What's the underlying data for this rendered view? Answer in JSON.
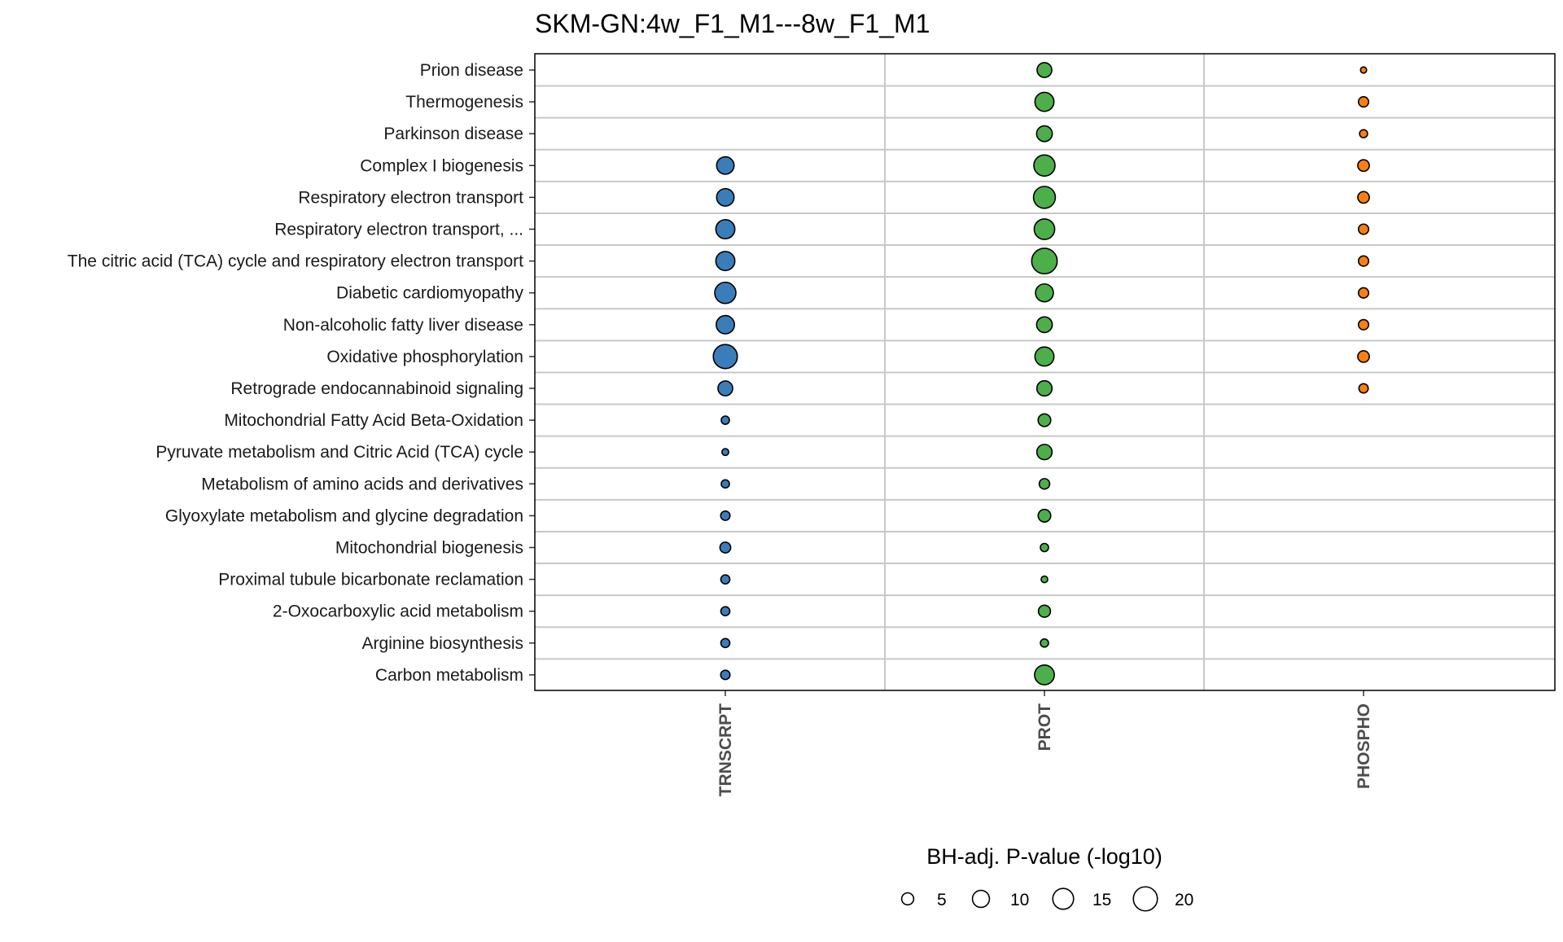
{
  "chart_data": {
    "type": "scatter",
    "title": "SKM-GN:4w_F1_M1---8w_F1_M1",
    "columns": [
      "TRNSCRPT",
      "PROT",
      "PHOSPHO"
    ],
    "colors": {
      "TRNSCRPT": "#3A7DBB",
      "PROT": "#4DAF4A",
      "PHOSPHO": "#FF7F0E"
    },
    "rows": [
      "Prion disease",
      "Thermogenesis",
      "Parkinson disease",
      "Complex I biogenesis",
      "Respiratory electron transport",
      "Respiratory electron transport, ...",
      "The citric acid (TCA) cycle and respiratory electron transport",
      "Diabetic cardiomyopathy",
      "Non-alcoholic fatty liver disease",
      "Oxidative phosphorylation",
      "Retrograde endocannabinoid signaling",
      "Mitochondrial Fatty Acid Beta-Oxidation",
      "Pyruvate metabolism and Citric Acid (TCA) cycle",
      "Metabolism of amino acids and derivatives",
      "Glyoxylate metabolism and glycine degradation",
      "Mitochondrial biogenesis",
      "Proximal tubule bicarbonate reclamation",
      "2-Oxocarboxylic acid metabolism",
      "Arginine biosynthesis",
      "Carbon metabolism"
    ],
    "series": [
      {
        "name": "TRNSCRPT",
        "values": [
          null,
          null,
          null,
          10.5,
          10.5,
          12.5,
          12.5,
          15.5,
          11.5,
          20.0,
          7.5,
          2.3,
          1.6,
          2.3,
          3.0,
          4.0,
          2.8,
          2.8,
          2.8,
          3.0
        ]
      },
      {
        "name": "PROT",
        "values": [
          7.5,
          12.5,
          8.5,
          15.5,
          16.5,
          14.5,
          22.5,
          11.0,
          8.5,
          12.5,
          8.0,
          5.5,
          8.0,
          3.8,
          5.5,
          2.3,
          1.5,
          5.0,
          2.3,
          13.5
        ]
      },
      {
        "name": "PHOSPHO",
        "values": [
          1.3,
          3.6,
          2.2,
          4.6,
          4.6,
          3.6,
          3.6,
          3.6,
          3.6,
          4.6,
          3.0,
          null,
          null,
          null,
          null,
          null,
          null,
          null,
          null,
          null
        ]
      }
    ],
    "legend": {
      "title": "BH-adj. P-value (-log10)",
      "values": [
        5,
        10,
        15,
        20
      ],
      "labels": [
        "5",
        "10",
        "15",
        "20"
      ],
      "placement": "bottom"
    },
    "grid": true
  }
}
